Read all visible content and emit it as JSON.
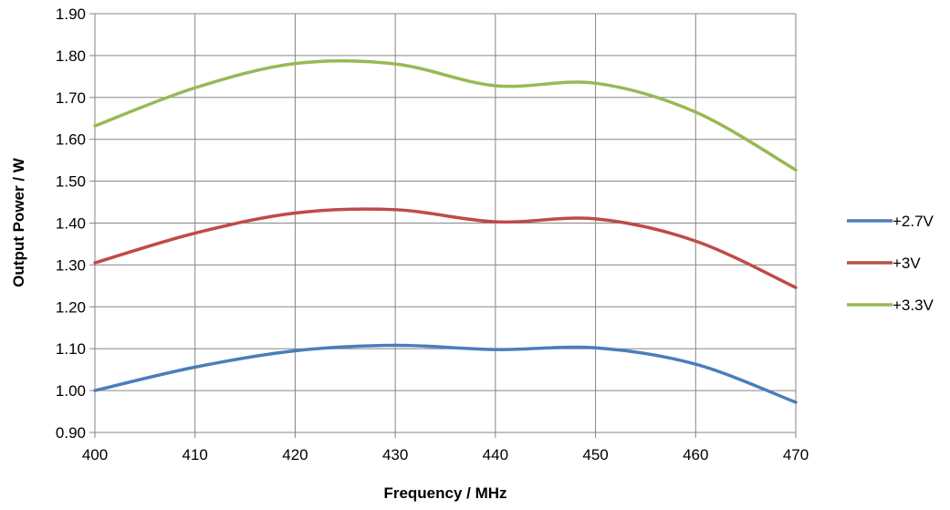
{
  "chart_data": {
    "type": "line",
    "title": "",
    "xlabel": "Frequency / MHz",
    "ylabel": "Output Power / W",
    "xlim": [
      400,
      470
    ],
    "ylim": [
      0.9,
      1.9
    ],
    "x_ticks": [
      "400",
      "410",
      "420",
      "430",
      "440",
      "450",
      "460",
      "470"
    ],
    "y_ticks": [
      "0.90",
      "1.00",
      "1.10",
      "1.20",
      "1.30",
      "1.40",
      "1.50",
      "1.60",
      "1.70",
      "1.80",
      "1.90"
    ],
    "grid": true,
    "legend_position": "right",
    "x": [
      400,
      410,
      420,
      430,
      440,
      450,
      460,
      470
    ],
    "series": [
      {
        "name": "+2.7V",
        "color": "#4a7ebb",
        "values": [
          1.0,
          1.056,
          1.095,
          1.108,
          1.098,
          1.102,
          1.063,
          0.972
        ]
      },
      {
        "name": "+3V",
        "color": "#be4b48",
        "values": [
          1.305,
          1.376,
          1.424,
          1.432,
          1.403,
          1.41,
          1.357,
          1.246
        ]
      },
      {
        "name": "+3.3V",
        "color": "#98b954",
        "values": [
          1.632,
          1.723,
          1.781,
          1.78,
          1.728,
          1.734,
          1.665,
          1.527
        ]
      }
    ]
  }
}
